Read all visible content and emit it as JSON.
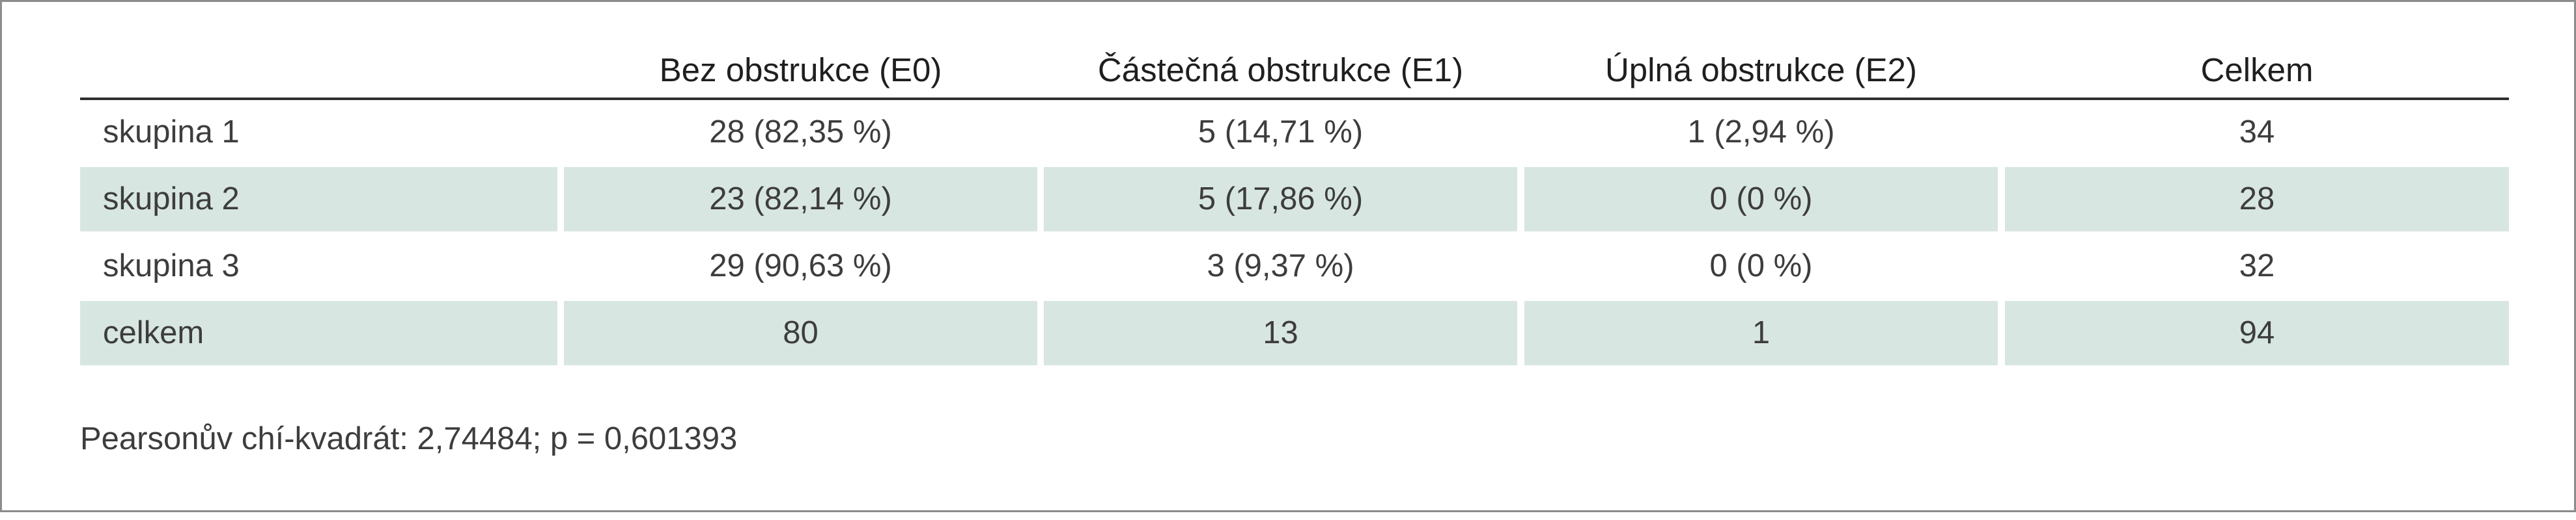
{
  "table": {
    "headers": [
      "",
      "Bez obstrukce (E0)",
      "Částečná obstrukce (E1)",
      "Úplná obstrukce (E2)",
      "Celkem"
    ],
    "rows": [
      {
        "label": "skupina 1",
        "e0": "28 (82,35 %)",
        "e1": "5 (14,71 %)",
        "e2": "1 (2,94 %)",
        "total": "34",
        "shaded": false
      },
      {
        "label": "skupina 2",
        "e0": "23 (82,14 %)",
        "e1": "5 (17,86 %)",
        "e2": "0 (0 %)",
        "total": "28",
        "shaded": true
      },
      {
        "label": "skupina 3",
        "e0": "29 (90,63 %)",
        "e1": "3 (9,37 %)",
        "e2": "0 (0 %)",
        "total": "32",
        "shaded": false
      },
      {
        "label": "celkem",
        "e0": "80",
        "e1": "13",
        "e2": "1",
        "total": "94",
        "shaded": true
      }
    ],
    "shade_color": "#d8e6e2"
  },
  "footnote": "Pearsonův chí-kvadrát: 2,74484; p = 0,601393"
}
